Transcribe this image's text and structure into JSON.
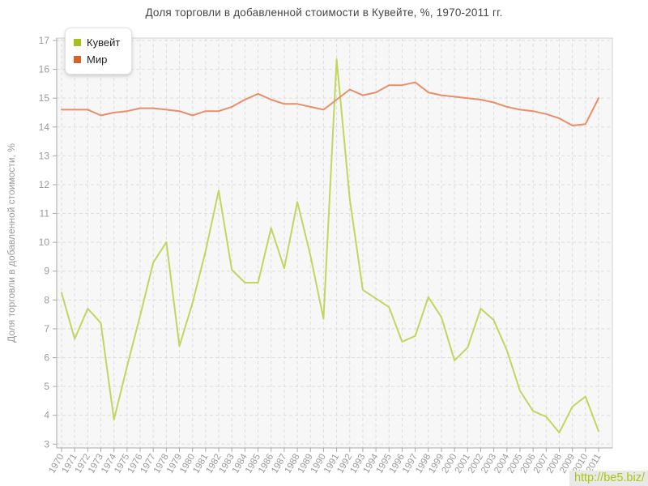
{
  "chart_data": {
    "type": "line",
    "title": "Доля торговли в добавленной стоимости в Кувейте, %, 1970-2011 гг.",
    "xlabel": "",
    "ylabel": "Доля торговли в добавленной стоимости, %",
    "ylim": [
      3,
      17
    ],
    "y_ticks": [
      3,
      4,
      5,
      6,
      7,
      8,
      9,
      10,
      11,
      12,
      13,
      14,
      15,
      16,
      17
    ],
    "grid": "dashed",
    "legend_position": "top-left",
    "categories": [
      "1970",
      "1971",
      "1972",
      "1973",
      "1974",
      "1975",
      "1976",
      "1977",
      "1978",
      "1979",
      "1980",
      "1981",
      "1982",
      "1983",
      "1984",
      "1985",
      "1986",
      "1987",
      "1988",
      "1989",
      "1990",
      "1991",
      "1992",
      "1993",
      "1994",
      "1995",
      "1996",
      "1997",
      "1998",
      "1999",
      "2000",
      "2001",
      "2002",
      "2003",
      "2004",
      "2005",
      "2006",
      "2007",
      "2008",
      "2009",
      "2010",
      "2011"
    ],
    "series": [
      {
        "name": "Кувейт",
        "color": "#a3c118",
        "line_color": "#bfd75e",
        "values": [
          8.25,
          6.65,
          7.7,
          7.2,
          3.85,
          5.7,
          7.45,
          9.3,
          10.0,
          6.4,
          7.9,
          9.7,
          11.8,
          9.05,
          8.6,
          8.6,
          10.5,
          9.1,
          11.4,
          9.55,
          7.35,
          16.35,
          11.5,
          8.35,
          8.05,
          7.75,
          6.55,
          6.75,
          8.1,
          7.4,
          5.9,
          6.35,
          7.7,
          7.3,
          6.25,
          4.85,
          4.15,
          3.95,
          3.4,
          4.3,
          4.65,
          3.45
        ]
      },
      {
        "name": "Мир",
        "color": "#d8622a",
        "line_color": "#e88e68",
        "values": [
          14.6,
          14.6,
          14.6,
          14.4,
          14.5,
          14.55,
          14.65,
          14.65,
          14.6,
          14.55,
          14.4,
          14.55,
          14.55,
          14.7,
          14.95,
          15.15,
          14.95,
          14.8,
          14.8,
          14.7,
          14.6,
          14.95,
          15.3,
          15.1,
          15.2,
          15.45,
          15.45,
          15.55,
          15.2,
          15.1,
          15.05,
          15.0,
          14.95,
          14.85,
          14.7,
          14.6,
          14.55,
          14.45,
          14.3,
          14.05,
          14.1,
          15.0
        ]
      }
    ],
    "colors": {
      "plot_background": "#f7f7f7",
      "grid_line": "#dddddd",
      "axis_line": "#a8a8a8",
      "plot_border": "#d2d2d2",
      "tick_label": "#999999",
      "axis_title": "#999999"
    }
  },
  "watermark": {
    "text": "http://be5.biz/",
    "color": "#a9c70f"
  }
}
